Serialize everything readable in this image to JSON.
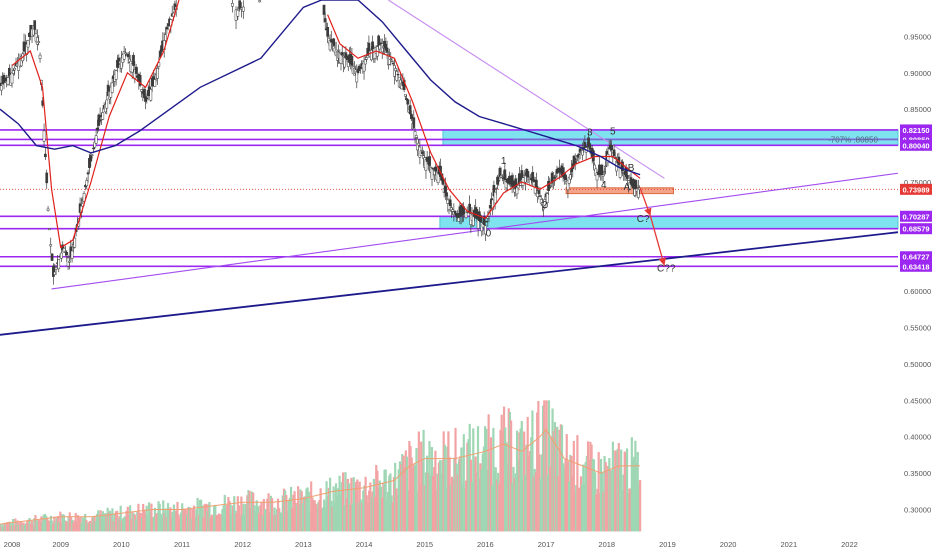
{
  "chart_data": {
    "type": "candlestick",
    "instrument_note": "",
    "ylim": [
      0.265,
      1.0
    ],
    "y_ticks": [
      "0.95000",
      "0.90000",
      "0.85000",
      "0.80000",
      "0.75000",
      "0.70000",
      "0.65000",
      "0.60000",
      "0.55000",
      "0.50000",
      "0.45000",
      "0.40000",
      "0.35000",
      "0.30000"
    ],
    "y_tick_values": [
      0.95,
      0.9,
      0.85,
      0.8,
      0.75,
      0.7,
      0.65,
      0.6,
      0.55,
      0.5,
      0.45,
      0.4,
      0.35,
      0.3
    ],
    "xlim": [
      2008.0,
      2022.8
    ],
    "x_ticks": [
      "2008",
      "2009",
      "2010",
      "2011",
      "2012",
      "2013",
      "2014",
      "2015",
      "2016",
      "2017",
      "2018",
      "2019",
      "2020",
      "2021",
      "2022"
    ],
    "x_tick_values": [
      2008,
      2009,
      2010,
      2011,
      2012,
      2013,
      2014,
      2015,
      2016,
      2017,
      2018,
      2019,
      2020,
      2021,
      2022
    ],
    "price_path": [
      [
        2008.0,
        0.88
      ],
      [
        2008.2,
        0.9
      ],
      [
        2008.4,
        0.93
      ],
      [
        2008.55,
        0.965
      ],
      [
        2008.65,
        0.94
      ],
      [
        2008.72,
        0.83
      ],
      [
        2008.8,
        0.7
      ],
      [
        2008.88,
        0.62
      ],
      [
        2008.95,
        0.64
      ],
      [
        2009.05,
        0.66
      ],
      [
        2009.15,
        0.64
      ],
      [
        2009.3,
        0.7
      ],
      [
        2009.45,
        0.76
      ],
      [
        2009.6,
        0.82
      ],
      [
        2009.75,
        0.86
      ],
      [
        2009.9,
        0.9
      ],
      [
        2010.05,
        0.93
      ],
      [
        2010.2,
        0.91
      ],
      [
        2010.4,
        0.86
      ],
      [
        2010.55,
        0.89
      ],
      [
        2010.75,
        0.96
      ],
      [
        2010.95,
        1.0
      ]
    ],
    "price_path_2": [
      [
        2011.8,
        1.0
      ],
      [
        2011.9,
        0.985
      ],
      [
        2012.0,
        0.99
      ],
      [
        2012.3,
        1.0
      ]
    ],
    "price_path_3": [
      [
        2013.3,
        1.0
      ],
      [
        2013.4,
        0.95
      ],
      [
        2013.55,
        0.93
      ],
      [
        2013.7,
        0.92
      ],
      [
        2013.9,
        0.9
      ],
      [
        2014.1,
        0.93
      ],
      [
        2014.3,
        0.94
      ],
      [
        2014.5,
        0.91
      ],
      [
        2014.65,
        0.88
      ],
      [
        2014.8,
        0.83
      ],
      [
        2014.95,
        0.79
      ],
      [
        2015.1,
        0.77
      ],
      [
        2015.25,
        0.76
      ],
      [
        2015.4,
        0.72
      ],
      [
        2015.55,
        0.7
      ],
      [
        2015.7,
        0.71
      ],
      [
        2015.85,
        0.7
      ],
      [
        2016.0,
        0.69
      ],
      [
        2016.1,
        0.72
      ],
      [
        2016.25,
        0.76
      ],
      [
        2016.35,
        0.75
      ],
      [
        2016.5,
        0.74
      ],
      [
        2016.65,
        0.76
      ],
      [
        2016.8,
        0.75
      ],
      [
        2016.95,
        0.72
      ],
      [
        2017.05,
        0.74
      ],
      [
        2017.2,
        0.765
      ],
      [
        2017.35,
        0.75
      ],
      [
        2017.55,
        0.79
      ],
      [
        2017.7,
        0.8
      ],
      [
        2017.85,
        0.76
      ],
      [
        2017.95,
        0.76
      ],
      [
        2018.05,
        0.8
      ],
      [
        2018.15,
        0.78
      ],
      [
        2018.3,
        0.76
      ],
      [
        2018.45,
        0.74
      ],
      [
        2018.55,
        0.742
      ]
    ],
    "series": [
      {
        "name": "",
        "color": "#e0201b",
        "path": [
          [
            2008.2,
            0.91
          ],
          [
            2008.5,
            0.93
          ],
          [
            2008.7,
            0.88
          ],
          [
            2008.85,
            0.74
          ],
          [
            2009.0,
            0.66
          ],
          [
            2009.2,
            0.67
          ],
          [
            2009.5,
            0.75
          ],
          [
            2009.8,
            0.84
          ],
          [
            2010.1,
            0.9
          ],
          [
            2010.4,
            0.88
          ],
          [
            2010.7,
            0.93
          ],
          [
            2010.95,
            1.0
          ]
        ]
      },
      {
        "name": "",
        "color": "#e0201b",
        "path": [
          [
            2013.4,
            0.98
          ],
          [
            2013.6,
            0.94
          ],
          [
            2013.9,
            0.92
          ],
          [
            2014.2,
            0.93
          ],
          [
            2014.5,
            0.92
          ],
          [
            2014.8,
            0.86
          ],
          [
            2015.1,
            0.79
          ],
          [
            2015.4,
            0.74
          ],
          [
            2015.7,
            0.71
          ],
          [
            2016.0,
            0.7
          ],
          [
            2016.3,
            0.735
          ],
          [
            2016.6,
            0.75
          ],
          [
            2016.9,
            0.74
          ],
          [
            2017.2,
            0.755
          ],
          [
            2017.5,
            0.775
          ],
          [
            2017.8,
            0.785
          ],
          [
            2018.1,
            0.785
          ],
          [
            2018.4,
            0.765
          ],
          [
            2018.55,
            0.755
          ]
        ]
      },
      {
        "name": "",
        "color": "#1d1a8c",
        "path": [
          [
            2008.0,
            0.85
          ],
          [
            2008.3,
            0.83
          ],
          [
            2008.6,
            0.8
          ],
          [
            2008.9,
            0.795
          ],
          [
            2009.2,
            0.8
          ],
          [
            2009.5,
            0.79
          ],
          [
            2009.9,
            0.8
          ],
          [
            2010.3,
            0.82
          ],
          [
            2010.8,
            0.85
          ],
          [
            2011.3,
            0.88
          ],
          [
            2011.8,
            0.9
          ],
          [
            2012.3,
            0.92
          ],
          [
            2012.7,
            0.96
          ],
          [
            2013.0,
            0.99
          ],
          [
            2013.3,
            1.0
          ],
          [
            2013.9,
            1.0
          ],
          [
            2014.3,
            0.97
          ],
          [
            2014.7,
            0.93
          ],
          [
            2015.1,
            0.89
          ],
          [
            2015.5,
            0.86
          ],
          [
            2015.9,
            0.84
          ],
          [
            2016.3,
            0.83
          ],
          [
            2016.7,
            0.82
          ],
          [
            2017.1,
            0.81
          ],
          [
            2017.5,
            0.8
          ],
          [
            2017.9,
            0.785
          ],
          [
            2018.2,
            0.77
          ],
          [
            2018.55,
            0.76
          ]
        ]
      }
    ],
    "horizontal_levels": [
      {
        "label": "0.82150",
        "value": 0.8215
      },
      {
        "label": "0.80850",
        "value": 0.8085
      },
      {
        "label": "0.80040",
        "value": 0.8004
      },
      {
        "label": "0.70287",
        "value": 0.70287
      },
      {
        "label": "0.68579",
        "value": 0.68579
      },
      {
        "label": "0.64727",
        "value": 0.64727
      },
      {
        "label": "0.63418",
        "value": 0.63418
      }
    ],
    "current_price": {
      "label": "0.73989",
      "value": 0.73989
    },
    "zones": [
      {
        "x0": 2015.3,
        "x1": 2022.8,
        "y0": 0.8004,
        "y1": 0.8215,
        "color": "#7fe3ef"
      },
      {
        "x0": 2015.25,
        "x1": 2022.8,
        "y0": 0.68579,
        "y1": 0.70287,
        "color": "#7fe3ef"
      },
      {
        "x0": 2017.33,
        "x1": 2019.1,
        "y0": 0.734,
        "y1": 0.742,
        "color": "#f3a48a"
      }
    ],
    "fib_label": "-707% .80850",
    "trendlines": [
      {
        "color": "#a24cf0",
        "points": [
          [
            2008.85,
            0.603
          ],
          [
            2022.8,
            0.762
          ]
        ]
      },
      {
        "color": "#1d1a8c",
        "points": [
          [
            2008.0,
            0.54
          ],
          [
            2022.8,
            0.681
          ]
        ]
      },
      {
        "color": "#c58cf2",
        "points": [
          [
            2014.4,
            1.0
          ],
          [
            2018.95,
            0.755
          ]
        ]
      }
    ],
    "projection_arrows": [
      {
        "points": [
          [
            2018.55,
            0.742
          ],
          [
            2018.72,
            0.703
          ]
        ]
      },
      {
        "points": [
          [
            2018.72,
            0.703
          ],
          [
            2018.95,
            0.635
          ]
        ]
      }
    ],
    "wave_labels": [
      {
        "text": "0",
        "x": 2016.05,
        "y": 0.675
      },
      {
        "text": "1",
        "x": 2016.3,
        "y": 0.775
      },
      {
        "text": "2",
        "x": 2016.98,
        "y": 0.714
      },
      {
        "text": "3",
        "x": 2017.72,
        "y": 0.814
      },
      {
        "text": "4",
        "x": 2017.95,
        "y": 0.742
      },
      {
        "text": "5",
        "x": 2018.1,
        "y": 0.815
      },
      {
        "text": "B",
        "x": 2018.4,
        "y": 0.765
      },
      {
        "text": "A",
        "x": 2018.33,
        "y": 0.739
      },
      {
        "text": "C?",
        "x": 2018.6,
        "y": 0.695
      },
      {
        "text": "C??",
        "x": 2018.98,
        "y": 0.627
      }
    ],
    "volume": {
      "baseline_y": 0.27,
      "top_y": 0.45,
      "color_up": "#9fd6b4",
      "color_down": "#f2a3a3",
      "ma_color": "#f0a070",
      "levels": [
        [
          2008.0,
          0.28
        ],
        [
          2008.5,
          0.285
        ],
        [
          2009.0,
          0.29
        ],
        [
          2009.5,
          0.29
        ],
        [
          2010.0,
          0.295
        ],
        [
          2010.5,
          0.3
        ],
        [
          2011.0,
          0.3
        ],
        [
          2011.5,
          0.305
        ],
        [
          2012.0,
          0.31
        ],
        [
          2012.5,
          0.31
        ],
        [
          2013.0,
          0.315
        ],
        [
          2013.5,
          0.325
        ],
        [
          2014.0,
          0.33
        ],
        [
          2014.5,
          0.34
        ],
        [
          2014.75,
          0.36
        ],
        [
          2015.0,
          0.37
        ],
        [
          2015.5,
          0.37
        ],
        [
          2016.0,
          0.38
        ],
        [
          2016.3,
          0.39
        ],
        [
          2016.6,
          0.38
        ],
        [
          2016.9,
          0.4
        ],
        [
          2017.0,
          0.41
        ],
        [
          2017.3,
          0.37
        ],
        [
          2017.6,
          0.36
        ],
        [
          2017.9,
          0.35
        ],
        [
          2018.2,
          0.36
        ],
        [
          2018.55,
          0.36
        ]
      ]
    }
  }
}
